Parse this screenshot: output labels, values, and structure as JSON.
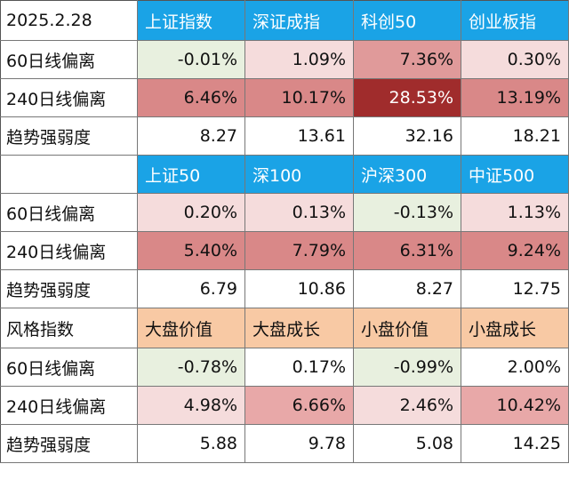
{
  "colors": {
    "header_blue": "#1aa3e6",
    "header_orange": "#f8c9a4",
    "negative_green": "#e8f0df",
    "light_pink": "#f5dcdc",
    "medium_pink": "#e8a8a8",
    "strong_pink": "#cf7676",
    "dark_red": "#a02c2c"
  },
  "row_labels": {
    "ma60": "60日线偏离",
    "ma240": "240日线偏离",
    "strength": "趋势强弱度"
  },
  "sections": [
    {
      "corner": "2025.2.28",
      "corner_bg": "#ffffff",
      "header_bg": "#1aa3e6",
      "header_text_color": "#ffffff",
      "indices": [
        "上证指数",
        "深证成指",
        "科创50",
        "创业板指"
      ],
      "ma60": [
        {
          "text": "-0.01%",
          "bg": "#e8f0df",
          "color": "#111111"
        },
        {
          "text": "1.09%",
          "bg": "#f5dcdc",
          "color": "#111111"
        },
        {
          "text": "7.36%",
          "bg": "#e09a9a",
          "color": "#111111"
        },
        {
          "text": "0.30%",
          "bg": "#f5dcdc",
          "color": "#111111"
        }
      ],
      "ma240": [
        {
          "text": "6.46%",
          "bg": "#d98888",
          "color": "#111111"
        },
        {
          "text": "10.17%",
          "bg": "#d98888",
          "color": "#111111"
        },
        {
          "text": "28.53%",
          "bg": "#a02c2c",
          "color": "#ffffff"
        },
        {
          "text": "13.19%",
          "bg": "#d98888",
          "color": "#111111"
        }
      ],
      "strength": [
        "8.27",
        "13.61",
        "32.16",
        "18.21"
      ]
    },
    {
      "corner": "",
      "corner_bg": "#ffffff",
      "header_bg": "#1aa3e6",
      "header_text_color": "#ffffff",
      "indices": [
        "上证50",
        "深100",
        "沪深300",
        "中证500"
      ],
      "ma60": [
        {
          "text": "0.20%",
          "bg": "#f5dcdc",
          "color": "#111111"
        },
        {
          "text": "0.13%",
          "bg": "#f5dcdc",
          "color": "#111111"
        },
        {
          "text": "-0.13%",
          "bg": "#e8f0df",
          "color": "#111111"
        },
        {
          "text": "1.13%",
          "bg": "#f5dcdc",
          "color": "#111111"
        }
      ],
      "ma240": [
        {
          "text": "5.40%",
          "bg": "#d98888",
          "color": "#111111"
        },
        {
          "text": "7.79%",
          "bg": "#d98888",
          "color": "#111111"
        },
        {
          "text": "6.31%",
          "bg": "#d98888",
          "color": "#111111"
        },
        {
          "text": "9.24%",
          "bg": "#d98888",
          "color": "#111111"
        }
      ],
      "strength": [
        "6.79",
        "10.86",
        "8.27",
        "12.75"
      ]
    },
    {
      "corner": "风格指数",
      "corner_bg": "#ffffff",
      "header_bg": "#f8c9a4",
      "header_text_color": "#111111",
      "indices": [
        "大盘价值",
        "大盘成长",
        "小盘价值",
        "小盘成长"
      ],
      "ma60": [
        {
          "text": "-0.78%",
          "bg": "#e8f0df",
          "color": "#111111"
        },
        {
          "text": "0.17%",
          "bg": "#ffffff",
          "color": "#111111"
        },
        {
          "text": "-0.99%",
          "bg": "#e8f0df",
          "color": "#111111"
        },
        {
          "text": "2.00%",
          "bg": "#ffffff",
          "color": "#111111"
        }
      ],
      "ma240": [
        {
          "text": "4.98%",
          "bg": "#f5dcdc",
          "color": "#111111"
        },
        {
          "text": "6.66%",
          "bg": "#e8a8a8",
          "color": "#111111"
        },
        {
          "text": "2.46%",
          "bg": "#f5dcdc",
          "color": "#111111"
        },
        {
          "text": "10.42%",
          "bg": "#e8a8a8",
          "color": "#111111"
        }
      ],
      "strength": [
        "5.88",
        "9.78",
        "5.08",
        "14.25"
      ]
    }
  ]
}
